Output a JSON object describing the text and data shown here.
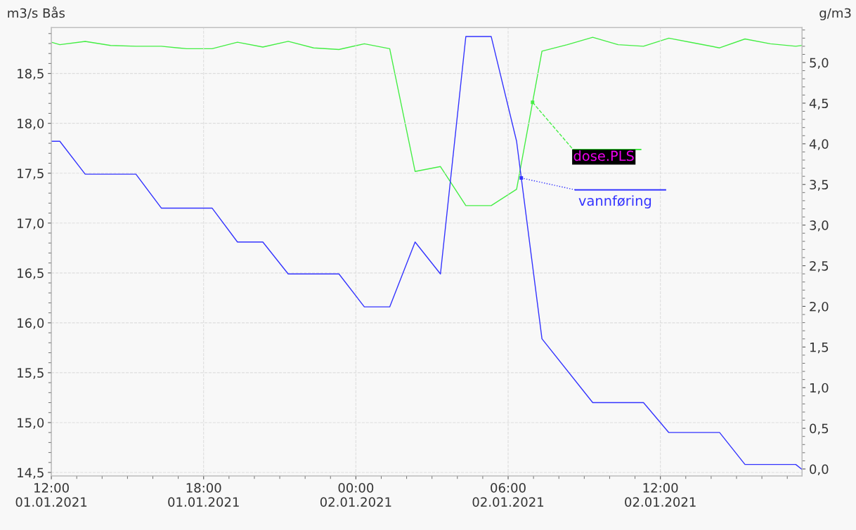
{
  "chart_data": {
    "type": "line",
    "ylabel": "m3/s Bås",
    "y2label": "g/m3",
    "xlim": [
      "2021-01-01T12:00",
      "2021-01-02T17:35"
    ],
    "xticks": [
      {
        "value": "2021-01-01T12:00",
        "label": "12:00\n01.01.2021"
      },
      {
        "value": "2021-01-01T18:00",
        "label": "18:00\n01.01.2021"
      },
      {
        "value": "2021-01-02T00:00",
        "label": "00:00\n02.01.2021"
      },
      {
        "value": "2021-01-02T06:00",
        "label": "06:00\n02.01.2021"
      },
      {
        "value": "2021-01-02T12:00",
        "label": "12:00\n02.01.2021"
      }
    ],
    "ylim": [
      14.465,
      18.96
    ],
    "yticks": [
      {
        "value": 14.5,
        "label": "14,5"
      },
      {
        "value": 15.0,
        "label": "15,0"
      },
      {
        "value": 15.5,
        "label": "15,5"
      },
      {
        "value": 16.0,
        "label": "16,0"
      },
      {
        "value": 16.5,
        "label": "16,5"
      },
      {
        "value": 17.0,
        "label": "17,0"
      },
      {
        "value": 17.5,
        "label": "17,5"
      },
      {
        "value": 18.0,
        "label": "18,0"
      },
      {
        "value": 18.5,
        "label": "18,5"
      }
    ],
    "y2lim": [
      -0.086,
      5.43
    ],
    "y2ticks": [
      {
        "value": 0.0,
        "label": "0,0"
      },
      {
        "value": 0.5,
        "label": "0,5"
      },
      {
        "value": 1.0,
        "label": "1,0"
      },
      {
        "value": 1.5,
        "label": "1,5"
      },
      {
        "value": 2.0,
        "label": "2,0"
      },
      {
        "value": 2.5,
        "label": "2,5"
      },
      {
        "value": 3.0,
        "label": "3,0"
      },
      {
        "value": 3.5,
        "label": "3,5"
      },
      {
        "value": 4.0,
        "label": "4,0"
      },
      {
        "value": 4.5,
        "label": "4,5"
      },
      {
        "value": 5.0,
        "label": "5,0"
      }
    ],
    "grid": true,
    "legend": "right",
    "marker": "none",
    "line_style": "solid",
    "series": [
      {
        "name": "dose.PLS",
        "color": "#44ee44",
        "axis": "y2",
        "x": [
          "2021-01-01T12:00",
          "2021-01-01T12:20",
          "2021-01-01T13:20",
          "2021-01-01T14:20",
          "2021-01-01T15:20",
          "2021-01-01T16:20",
          "2021-01-01T17:20",
          "2021-01-01T18:20",
          "2021-01-01T19:20",
          "2021-01-01T20:20",
          "2021-01-01T21:20",
          "2021-01-01T22:20",
          "2021-01-01T23:20",
          "2021-01-02T00:20",
          "2021-01-02T01:20",
          "2021-01-02T02:20",
          "2021-01-02T03:20",
          "2021-01-02T04:20",
          "2021-01-02T05:20",
          "2021-01-02T06:20",
          "2021-01-02T07:20",
          "2021-01-02T08:20",
          "2021-01-02T09:20",
          "2021-01-02T10:20",
          "2021-01-02T11:20",
          "2021-01-02T12:20",
          "2021-01-02T13:20",
          "2021-01-02T14:20",
          "2021-01-02T15:20",
          "2021-01-02T16:20",
          "2021-01-02T17:20",
          "2021-01-02T17:35"
        ],
        "values": [
          5.25,
          5.22,
          5.26,
          5.21,
          5.2,
          5.2,
          5.17,
          5.17,
          5.25,
          5.19,
          5.26,
          5.18,
          5.16,
          5.23,
          5.17,
          3.66,
          3.72,
          3.24,
          3.24,
          3.44,
          5.14,
          5.22,
          5.31,
          5.22,
          5.2,
          5.3,
          5.24,
          5.18,
          5.29,
          5.23,
          5.2,
          5.21
        ]
      },
      {
        "name": "vannføring",
        "color": "#3333ff",
        "x": [
          "2021-01-01T12:00",
          "2021-01-01T12:20",
          "2021-01-01T13:20",
          "2021-01-01T15:20",
          "2021-01-01T16:20",
          "2021-01-01T18:20",
          "2021-01-01T19:20",
          "2021-01-01T20:20",
          "2021-01-01T21:20",
          "2021-01-01T23:20",
          "2021-01-02T00:20",
          "2021-01-02T01:20",
          "2021-01-02T02:20",
          "2021-01-02T03:20",
          "2021-01-02T04:20",
          "2021-01-02T05:20",
          "2021-01-02T06:20",
          "2021-01-02T07:20",
          "2021-01-02T09:20",
          "2021-01-02T11:20",
          "2021-01-02T12:20",
          "2021-01-02T14:20",
          "2021-01-02T15:20",
          "2021-01-02T17:20",
          "2021-01-02T17:35"
        ],
        "values": [
          17.82,
          17.82,
          17.49,
          17.49,
          17.15,
          17.15,
          16.81,
          16.81,
          16.49,
          16.49,
          16.16,
          16.16,
          16.81,
          16.49,
          18.87,
          18.87,
          17.82,
          15.84,
          15.2,
          15.2,
          14.9,
          14.9,
          14.58,
          14.58,
          14.53
        ]
      }
    ]
  }
}
